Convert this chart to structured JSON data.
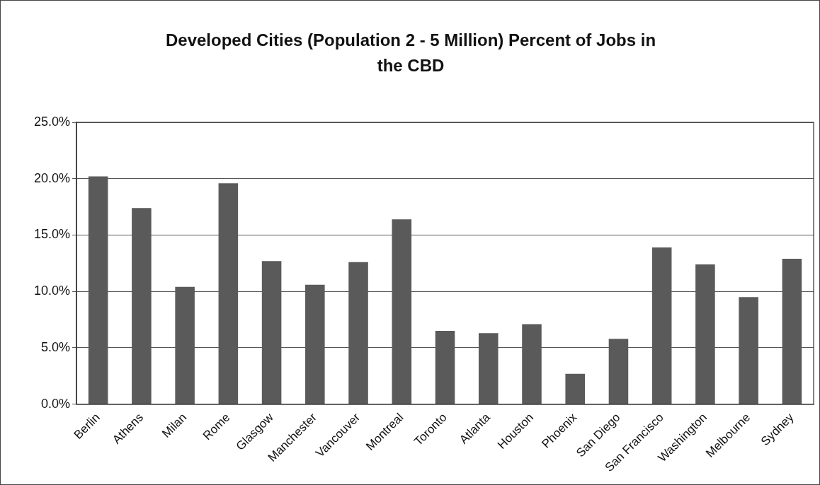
{
  "chart_data": {
    "type": "bar",
    "title": "Developed Cities (Population 2 - 5 Million) Percent of Jobs in the CBD",
    "categories": [
      "Berlin",
      "Athens",
      "Milan",
      "Rome",
      "Glasgow",
      "Manchester",
      "Vancouver",
      "Montreal",
      "Toronto",
      "Atlanta",
      "Houston",
      "Phoenix",
      "San Diego",
      "San Francisco",
      "Washington",
      "Melbourne",
      "Sydney"
    ],
    "values": [
      20.2,
      17.4,
      10.4,
      19.6,
      12.7,
      10.6,
      12.6,
      16.4,
      6.5,
      6.3,
      7.1,
      2.7,
      5.8,
      13.9,
      12.4,
      9.5,
      12.9
    ],
    "color": "#5a5a5a",
    "ylim": [
      0,
      25
    ],
    "yticks": [
      {
        "value": 0,
        "label": "0.0%"
      },
      {
        "value": 5,
        "label": "5.0%"
      },
      {
        "value": 10,
        "label": "10.0%"
      },
      {
        "value": 15,
        "label": "15.0%"
      },
      {
        "value": 20,
        "label": "20.0%"
      },
      {
        "value": 25,
        "label": "25.0%"
      }
    ],
    "grid": "y",
    "legend": false
  }
}
